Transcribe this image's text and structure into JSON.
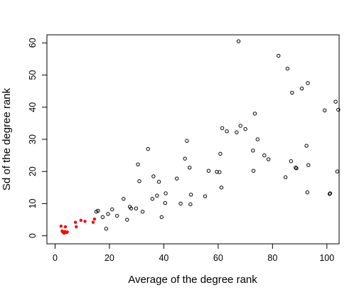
{
  "chart_data": {
    "type": "scatter",
    "xlabel": "Average of the degree rank",
    "ylabel": "Sd of the degree rank",
    "xlim": [
      -3,
      104.5
    ],
    "ylim": [
      -2.5,
      62.5
    ],
    "xticks": [
      0,
      20,
      40,
      60,
      80,
      100
    ],
    "yticks": [
      0,
      10,
      20,
      30,
      40,
      50,
      60
    ],
    "grid": false,
    "legend": "none",
    "colors": {
      "open": "#000000",
      "highlight": "#ff0000"
    },
    "series": [
      {
        "style": "open-circle",
        "color": "#000000",
        "x": [
          15.2,
          15.8,
          17.5,
          18.8,
          19.5,
          21,
          22.8,
          25.2,
          26.5,
          27.5,
          28,
          29.8,
          30.5,
          31,
          32.2,
          34.2,
          35.8,
          36.2,
          37.5,
          38.2,
          39.2,
          40.5,
          40.7,
          44.8,
          46.2,
          47.8,
          48.5,
          49.5,
          49.8,
          50,
          55.2,
          56.5,
          59.5,
          60.5,
          60.8,
          61.2,
          61.5,
          63.2,
          66.8,
          67.5,
          68.2,
          70,
          72.8,
          73,
          73.5,
          74.5,
          77,
          78.5,
          82.2,
          84.8,
          85.5,
          86.8,
          87.2,
          88.5,
          88.8,
          90.8,
          92.5,
          92.8,
          93,
          93.2,
          99.2,
          101,
          101.2,
          103.2,
          103.8,
          104.2
        ],
        "y": [
          7.5,
          7.8,
          5.8,
          2.2,
          6.8,
          8.2,
          6.2,
          11.5,
          5,
          9,
          8.5,
          8.5,
          22.2,
          17,
          7.5,
          27,
          11.5,
          18.5,
          12.5,
          16.8,
          5.8,
          10.2,
          13.2,
          17.8,
          10,
          24,
          29.5,
          21.2,
          9.8,
          12.8,
          12.3,
          20.2,
          19.9,
          19.8,
          25.5,
          15,
          33.5,
          32.5,
          32.2,
          60.5,
          34.2,
          33.2,
          26.5,
          20.2,
          38,
          30,
          25,
          23.8,
          56,
          18.2,
          52,
          23.2,
          44.5,
          21.2,
          21,
          45.8,
          28,
          13.5,
          47.5,
          22,
          39,
          13,
          13.2,
          41.7,
          20,
          39.2
        ]
      },
      {
        "style": "filled-dot",
        "color": "#ff0000",
        "x": [
          2.2,
          2.8,
          3.3,
          3.8,
          4.2,
          7.5,
          7.8,
          9.5,
          11,
          14,
          14.5,
          2.6,
          3.6,
          4.5
        ],
        "y": [
          3,
          1.2,
          0.8,
          2.8,
          1,
          4.2,
          2.8,
          4.8,
          4.5,
          4.2,
          5.2,
          1.5,
          1.3,
          1.2
        ]
      }
    ]
  }
}
